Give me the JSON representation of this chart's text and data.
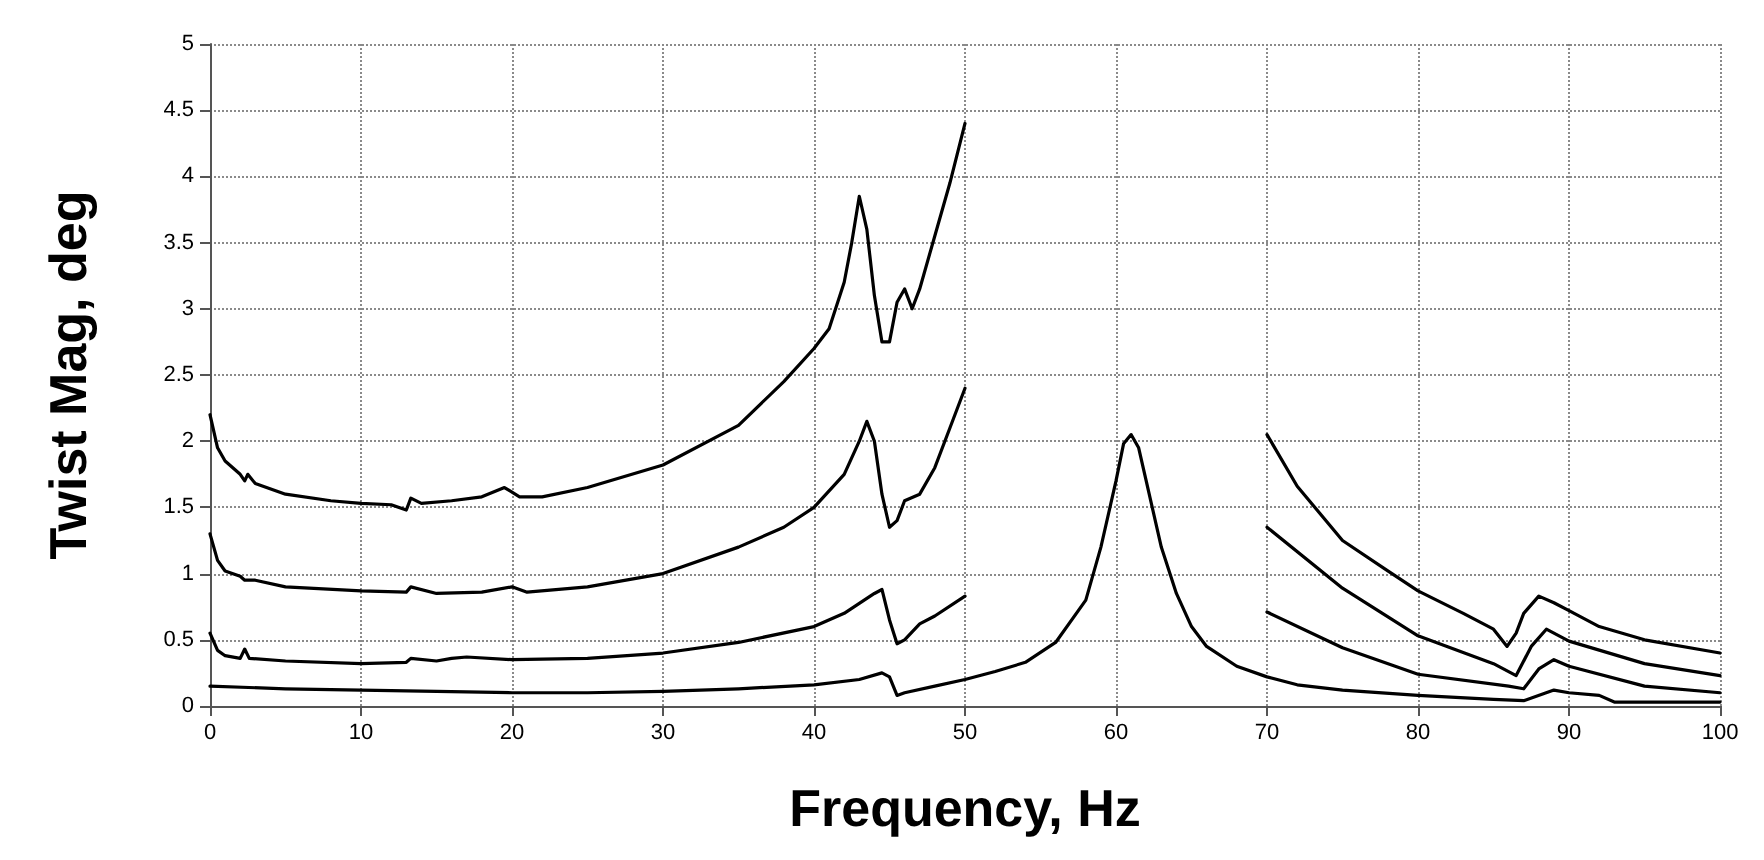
{
  "chart_data": {
    "type": "line",
    "xlabel": "Frequency, Hz",
    "ylabel": "Twist Mag, deg",
    "xlim": [
      0,
      100
    ],
    "ylim": [
      0,
      5
    ],
    "xticks": [
      0,
      10,
      20,
      30,
      40,
      50,
      60,
      70,
      80,
      90,
      100
    ],
    "yticks": [
      0,
      0.5,
      1,
      1.5,
      2,
      2.5,
      3,
      3.5,
      4,
      4.5,
      5
    ],
    "grid": true,
    "marker": "none",
    "line_style": "solid",
    "series": [
      {
        "color": "#000000",
        "x": [
          0,
          0.5,
          1,
          2,
          2.3,
          2.5,
          3,
          5,
          8,
          10,
          12,
          13,
          13.3,
          14,
          16,
          18,
          19.5,
          20.5,
          22,
          25,
          30,
          35,
          38,
          40,
          41,
          42,
          42.5,
          43,
          43.5,
          44,
          44.5,
          45,
          45.5,
          46,
          46.5,
          47,
          48,
          49,
          50,
          60,
          70,
          72,
          75,
          78,
          80,
          83,
          85,
          85.9,
          86.5,
          87,
          88,
          89,
          90,
          92,
          95,
          100
        ],
        "values": [
          2.2,
          1.95,
          1.85,
          1.75,
          1.7,
          1.75,
          1.68,
          1.6,
          1.55,
          1.53,
          1.52,
          1.48,
          1.57,
          1.53,
          1.55,
          1.58,
          1.65,
          1.58,
          1.58,
          1.65,
          1.82,
          2.12,
          2.45,
          2.7,
          2.85,
          3.2,
          3.5,
          3.85,
          3.6,
          3.1,
          2.75,
          2.75,
          3.05,
          3.15,
          3.0,
          3.15,
          3.55,
          3.95,
          4.4,
          null,
          2.05,
          1.66,
          1.25,
          1.02,
          0.87,
          0.7,
          0.58,
          0.45,
          0.55,
          0.7,
          0.83,
          0.78,
          0.72,
          0.6,
          0.5,
          0.4
        ]
      },
      {
        "color": "#000000",
        "x": [
          0,
          0.5,
          1,
          2,
          2.3,
          3,
          5,
          10,
          13,
          13.3,
          15,
          18,
          20,
          21,
          25,
          30,
          35,
          38,
          40,
          42,
          43,
          43.5,
          44,
          44.5,
          45,
          45.5,
          46,
          47,
          48,
          49,
          50,
          60,
          70,
          75,
          80,
          85,
          86.5,
          87.5,
          88.5,
          90,
          95,
          100
        ],
        "values": [
          1.3,
          1.1,
          1.02,
          0.98,
          0.95,
          0.95,
          0.9,
          0.87,
          0.86,
          0.9,
          0.85,
          0.86,
          0.9,
          0.86,
          0.9,
          1.0,
          1.2,
          1.35,
          1.5,
          1.75,
          2.0,
          2.15,
          2.0,
          1.6,
          1.35,
          1.4,
          1.55,
          1.6,
          1.8,
          2.1,
          2.4,
          null,
          1.35,
          0.89,
          0.53,
          0.32,
          0.23,
          0.45,
          0.58,
          0.49,
          0.32,
          0.23
        ]
      },
      {
        "color": "#000000",
        "x": [
          0,
          0.5,
          1,
          2,
          2.3,
          2.6,
          5,
          10,
          13,
          13.3,
          15,
          16,
          17,
          20,
          25,
          30,
          35,
          40,
          42,
          44,
          44.5,
          45,
          45.5,
          46,
          47,
          48,
          50,
          60,
          70,
          75,
          80,
          86,
          87,
          88,
          89,
          90,
          95,
          100
        ],
        "values": [
          0.55,
          0.42,
          0.38,
          0.36,
          0.43,
          0.36,
          0.34,
          0.32,
          0.33,
          0.36,
          0.34,
          0.36,
          0.37,
          0.35,
          0.36,
          0.4,
          0.48,
          0.6,
          0.7,
          0.85,
          0.88,
          0.65,
          0.47,
          0.5,
          0.62,
          0.68,
          0.83,
          null,
          0.71,
          0.44,
          0.24,
          0.15,
          0.13,
          0.28,
          0.35,
          0.3,
          0.15,
          0.1
        ]
      },
      {
        "color": "#000000",
        "x": [
          0,
          5,
          10,
          15,
          20,
          25,
          30,
          35,
          40,
          43,
          44.5,
          45,
          45.5,
          46,
          48,
          50,
          52,
          54,
          56,
          58,
          59,
          60,
          60.5,
          61,
          61.5,
          62,
          63,
          64,
          65,
          66,
          68,
          70,
          72,
          75,
          80,
          85,
          87,
          89,
          90,
          92,
          93,
          95,
          100
        ],
        "values": [
          0.15,
          0.13,
          0.12,
          0.11,
          0.1,
          0.1,
          0.11,
          0.13,
          0.16,
          0.2,
          0.25,
          0.22,
          0.08,
          0.1,
          0.15,
          0.2,
          0.26,
          0.33,
          0.48,
          0.8,
          1.2,
          1.7,
          1.98,
          2.05,
          1.95,
          1.7,
          1.2,
          0.85,
          0.6,
          0.45,
          0.3,
          0.22,
          0.16,
          0.12,
          0.08,
          0.05,
          0.04,
          0.12,
          0.1,
          0.08,
          0.03,
          0.03,
          0.03
        ]
      }
    ]
  }
}
